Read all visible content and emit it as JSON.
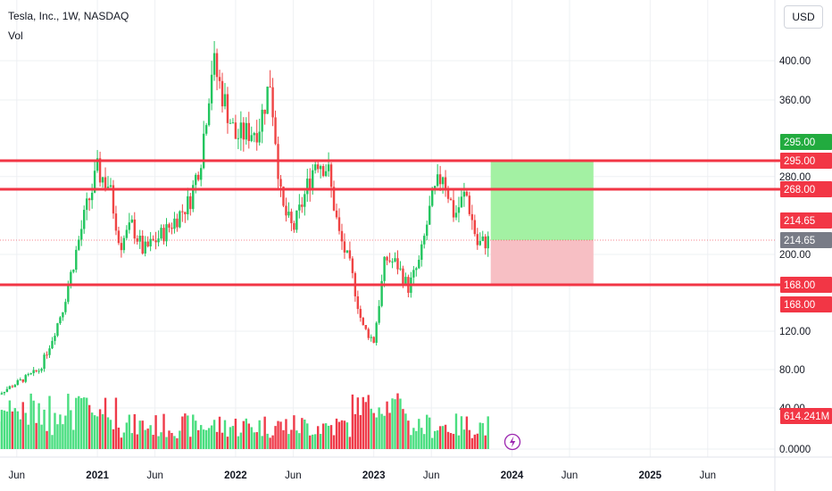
{
  "header": {
    "title": "Tesla, Inc., 1W, NASDAQ",
    "indicator": "Vol",
    "currency": "USD"
  },
  "price_ticks": [
    "400.00",
    "360.00",
    "280.00",
    "200.00",
    "120.00",
    "80.00",
    "40.00",
    "0.0000"
  ],
  "date_ticks": [
    {
      "label": "Jun",
      "year": false
    },
    {
      "label": "2021",
      "year": true
    },
    {
      "label": "Jun",
      "year": false
    },
    {
      "label": "2022",
      "year": true
    },
    {
      "label": "Jun",
      "year": false
    },
    {
      "label": "2023",
      "year": true
    },
    {
      "label": "Jun",
      "year": false
    },
    {
      "label": "2024",
      "year": true
    },
    {
      "label": "Jun",
      "year": false
    },
    {
      "label": "2025",
      "year": true
    },
    {
      "label": "Jun",
      "year": false
    }
  ],
  "levels": [
    {
      "label": "295.00",
      "value": 295,
      "color": "#f23645"
    },
    {
      "label": "268.00",
      "value": 268,
      "color": "#f23645"
    },
    {
      "label": "168.00",
      "value": 168,
      "color": "#f23645"
    }
  ],
  "badges": {
    "target": {
      "label": "295.00",
      "color": "#22ab3f"
    },
    "entry": {
      "label": "214.65",
      "color": "#f23645"
    },
    "last_price": {
      "label": "214.65",
      "color": "#787b86"
    },
    "stop": {
      "label": "168.00",
      "color": "#f23645"
    },
    "volume": {
      "label": "614.241M",
      "color": "#f23645"
    }
  },
  "colors": {
    "up": "#22c55e",
    "down": "#ef4444",
    "vol_up": "#4ade80",
    "vol_down": "#ef3b4a",
    "level_line": "#f23645",
    "profit_zone": "#9ef09e",
    "loss_zone": "#f7bcc1"
  },
  "chart_data": {
    "type": "candlestick",
    "symbol": "Tesla, Inc.",
    "interval": "1W",
    "exchange": "NASDAQ",
    "price_scale": "log",
    "x_range": [
      "2020-04",
      "2025-08"
    ],
    "y_range": [
      0,
      420
    ],
    "price_path": [
      {
        "date": "2020-04",
        "price": 52
      },
      {
        "date": "2020-06",
        "price": 66
      },
      {
        "date": "2020-08",
        "price": 80
      },
      {
        "date": "2020-09",
        "price": 110
      },
      {
        "date": "2020-10",
        "price": 144
      },
      {
        "date": "2020-12",
        "price": 246
      },
      {
        "date": "2021-01",
        "price": 285
      },
      {
        "date": "2021-02",
        "price": 272
      },
      {
        "date": "2021-03",
        "price": 210
      },
      {
        "date": "2021-04",
        "price": 230
      },
      {
        "date": "2021-05",
        "price": 203
      },
      {
        "date": "2021-07",
        "price": 225
      },
      {
        "date": "2021-09",
        "price": 255
      },
      {
        "date": "2021-10",
        "price": 300
      },
      {
        "date": "2021-11",
        "price": 400
      },
      {
        "date": "2021-12",
        "price": 360
      },
      {
        "date": "2022-01",
        "price": 320
      },
      {
        "date": "2022-03",
        "price": 330
      },
      {
        "date": "2022-04",
        "price": 380
      },
      {
        "date": "2022-05",
        "price": 250
      },
      {
        "date": "2022-06",
        "price": 225
      },
      {
        "date": "2022-08",
        "price": 298
      },
      {
        "date": "2022-09",
        "price": 288
      },
      {
        "date": "2022-10",
        "price": 220
      },
      {
        "date": "2022-11",
        "price": 185
      },
      {
        "date": "2022-12",
        "price": 125
      },
      {
        "date": "2023-01",
        "price": 110
      },
      {
        "date": "2023-02",
        "price": 196
      },
      {
        "date": "2023-03",
        "price": 190
      },
      {
        "date": "2023-04",
        "price": 165
      },
      {
        "date": "2023-05",
        "price": 193
      },
      {
        "date": "2023-06",
        "price": 255
      },
      {
        "date": "2023-07",
        "price": 285
      },
      {
        "date": "2023-08",
        "price": 240
      },
      {
        "date": "2023-09",
        "price": 265
      },
      {
        "date": "2023-10",
        "price": 210
      },
      {
        "date": "2023-11",
        "price": 214.65
      }
    ],
    "volume_range_millions": [
      0,
      2100
    ],
    "volume_last": "614.241M",
    "horizontal_levels": [
      295,
      268,
      168
    ],
    "position": {
      "type": "long",
      "entry": 214.65,
      "target": 295,
      "stop": 168,
      "start": "2023-11",
      "end": "2024-08"
    },
    "grid": true,
    "legend": "none"
  }
}
